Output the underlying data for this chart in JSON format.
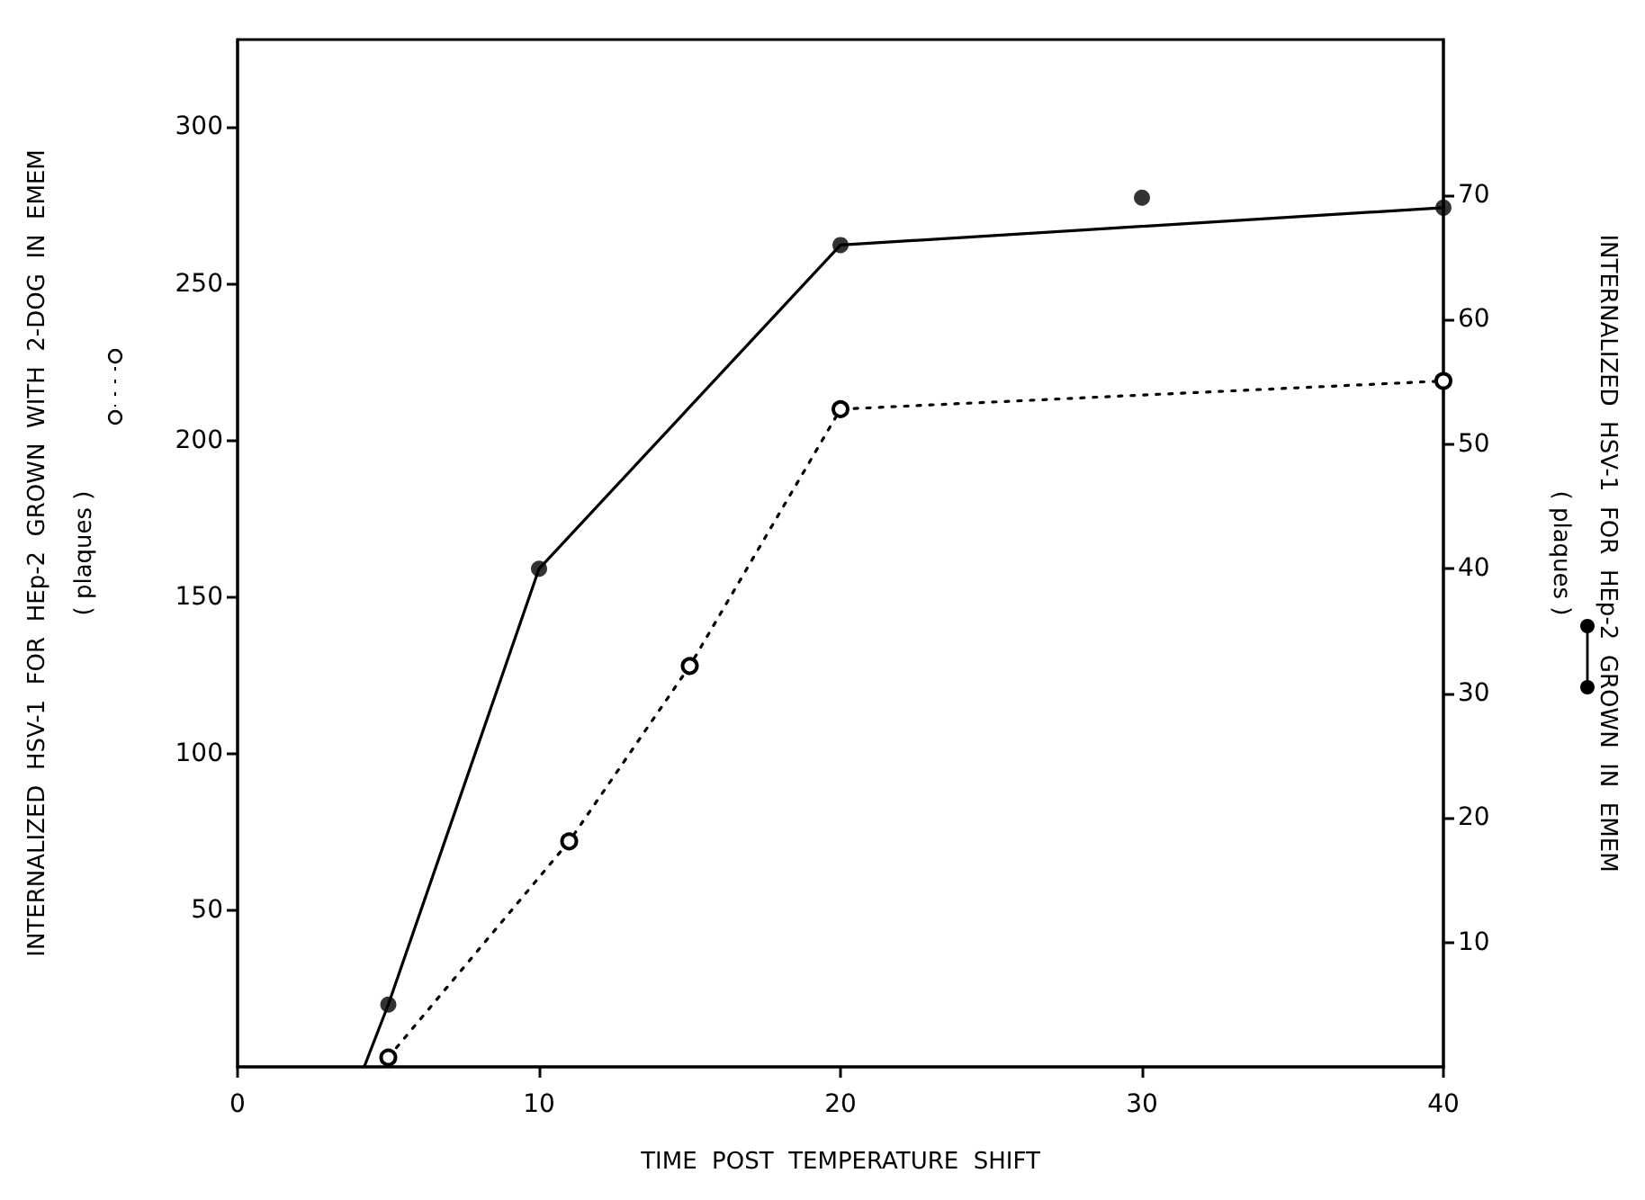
{
  "chart_data": {
    "type": "line",
    "xlabel": "TIME  POST  TEMPERATURE  SHIFT",
    "ylabel": "INTERNALIZED  HSV-1  FOR  HEp-2  GROWN  WITH  2-DOG  IN  EMEM\n( plaques )",
    "y2label": "INTERNALIZED  HSV-1  FOR  HEp-2  GROWN  IN  EMEM\n( plaques )",
    "xlim": [
      0,
      40
    ],
    "xticks": [
      0,
      10,
      20,
      30,
      40
    ],
    "ylim": [
      0,
      328
    ],
    "yticks": [
      50,
      100,
      150,
      200,
      250,
      300
    ],
    "y2lim": [
      0,
      82.5
    ],
    "y2ticks": [
      10,
      20,
      30,
      40,
      50,
      60,
      70
    ],
    "grid": false,
    "series": [
      {
        "color": "#000000",
        "line_style": "dotted",
        "marker": "circle",
        "x": [
          5,
          11,
          15,
          20,
          40
        ],
        "values": [
          3,
          72,
          128,
          210,
          219
        ]
      },
      {
        "color": "#000000",
        "line_style": "solid",
        "marker": "none",
        "axis": "y2",
        "x": [
          4.2,
          5,
          10,
          20,
          40
        ],
        "values": [
          0,
          5,
          40,
          66,
          69
        ]
      },
      {
        "type": "scatter",
        "color": "#000000",
        "marker": "circle",
        "axis": "y2",
        "x": [
          5,
          10,
          20,
          30,
          40
        ],
        "values": [
          5,
          40,
          66,
          69.8,
          69
        ]
      }
    ]
  }
}
